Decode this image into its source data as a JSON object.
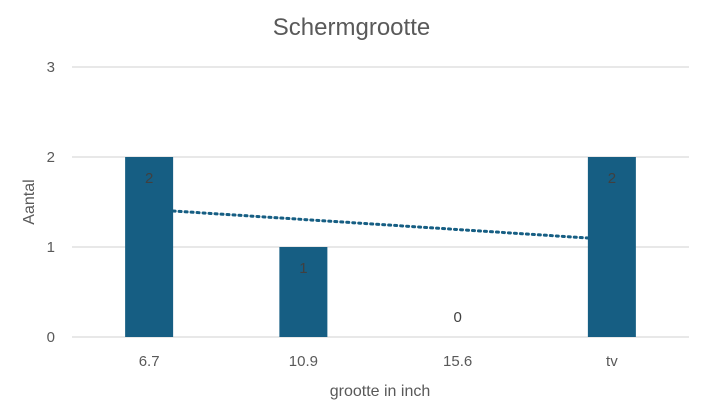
{
  "chart_data": {
    "type": "bar",
    "title": "Schermgrootte",
    "xlabel": "grootte in inch",
    "ylabel": "Aantal",
    "categories": [
      "6.7",
      "10.9",
      "15.6",
      "tv"
    ],
    "values": [
      2,
      1,
      0,
      2
    ],
    "data_labels": [
      "2",
      "1",
      "0",
      "2"
    ],
    "y_ticks": [
      "0",
      "1",
      "2",
      "3"
    ],
    "ylim": [
      0,
      3
    ],
    "grid": true,
    "legend": "none",
    "trendline": {
      "type": "linear",
      "style": "dotted",
      "start": {
        "category": "6.7",
        "value": 1.4
      },
      "end": {
        "category": "tv",
        "value": 1.1
      }
    },
    "colors": {
      "bar": "#165E83",
      "trendline": "#165E83",
      "grid": "#D9D9D9",
      "text": "#595959"
    }
  }
}
